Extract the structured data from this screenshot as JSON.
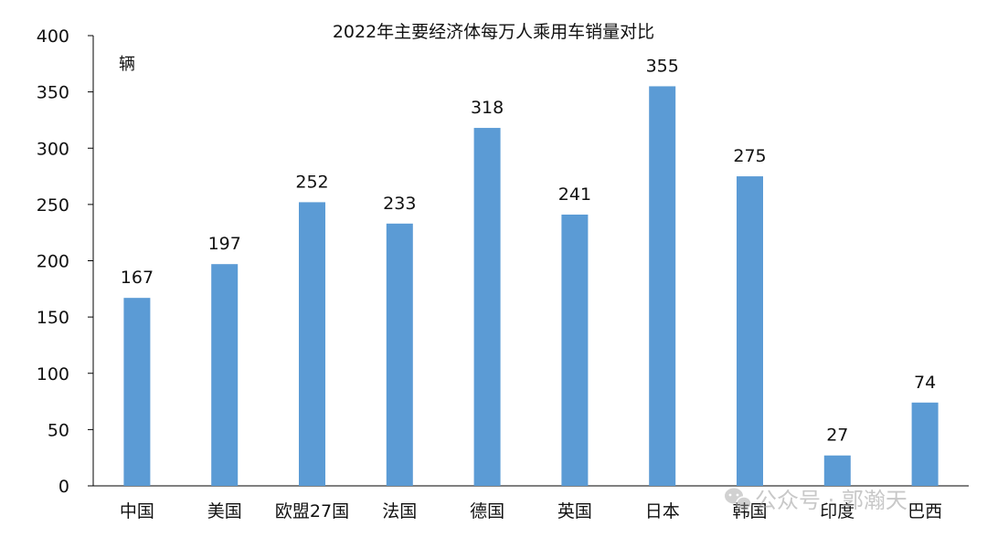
{
  "chart_data": {
    "type": "bar",
    "title": "2022年主要经济体每万人乘用车销量对比",
    "ylabel": "辆",
    "xlabel": "",
    "ylim": [
      0,
      400
    ],
    "yticks": [
      0,
      50,
      100,
      150,
      200,
      250,
      300,
      350,
      400
    ],
    "grid": false,
    "categories": [
      "中国",
      "美国",
      "欧盟27国",
      "法国",
      "德国",
      "英国",
      "日本",
      "韩国",
      "印度",
      "巴西"
    ],
    "values": [
      167,
      197,
      252,
      233,
      318,
      241,
      355,
      275,
      27,
      74
    ],
    "bar_color": "#5b9bd5"
  },
  "watermark": {
    "text": "公众号 · 郭瀚天"
  }
}
